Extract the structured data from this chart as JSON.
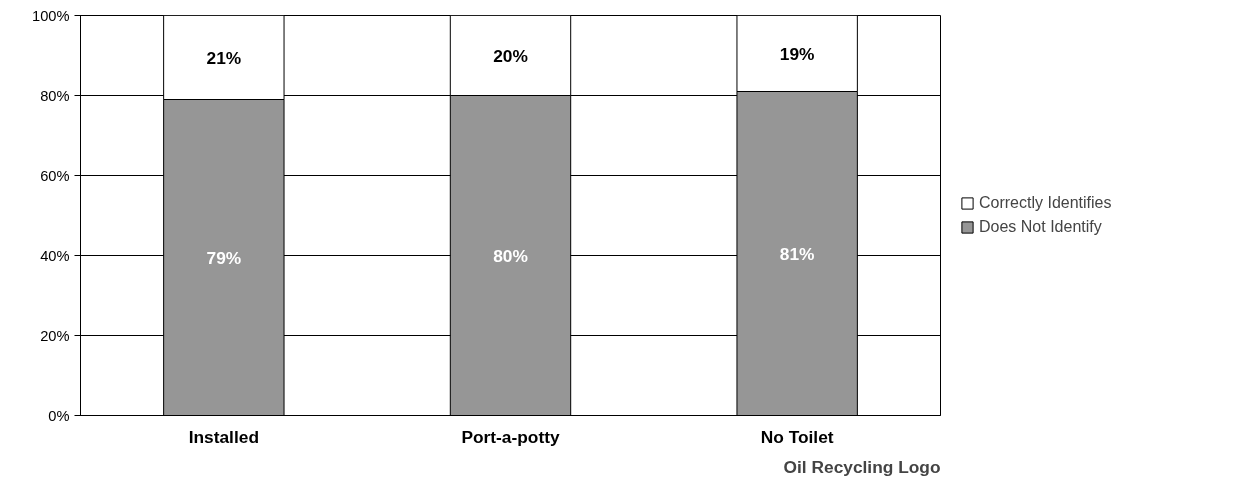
{
  "chart_data": {
    "type": "bar",
    "stacked": true,
    "categories": [
      "Installed",
      "Port-a-potty",
      "No Toilet"
    ],
    "series": [
      {
        "name": "Does Not Identify",
        "color": "#969696",
        "values": [
          79,
          80,
          81
        ],
        "value_labels": [
          "79%",
          "80%",
          "81%"
        ]
      },
      {
        "name": "Correctly Identifies",
        "color": "#ffffff",
        "values": [
          21,
          20,
          19
        ],
        "value_labels": [
          "21%",
          "20%",
          "19%"
        ]
      }
    ],
    "xlabel": "Oil Recycling Logo",
    "ylim": [
      0,
      100
    ],
    "yticks": [
      {
        "value": 0,
        "label": "0%"
      },
      {
        "value": 20,
        "label": "20%"
      },
      {
        "value": 40,
        "label": "40%"
      },
      {
        "value": 60,
        "label": "60%"
      },
      {
        "value": 80,
        "label": "80%"
      },
      {
        "value": 100,
        "label": "100%"
      }
    ],
    "grid": "y",
    "legend": "right"
  }
}
